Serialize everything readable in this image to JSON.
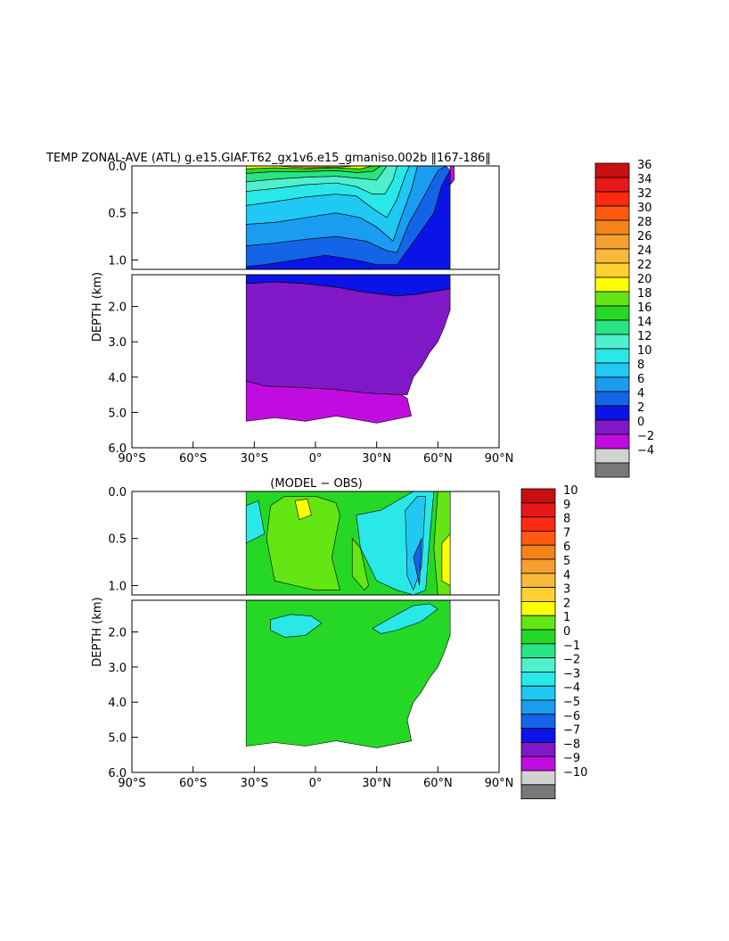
{
  "figure": {
    "title": "TEMP ZONAL-AVE (ATL) g.e15.GIAF.T62_gx1v6.e15_gmaniso.002b ‖167-186‖"
  },
  "chart_data": [
    {
      "type": "heatmap",
      "title": "TEMP ZONAL-AVE (ATL) g.e15.GIAF.T62_gx1v6.e15_gmaniso.002b ‖167-186‖",
      "ylabel": "DEPTH (km)",
      "xlabel": "",
      "x_ticks": [
        "90°S",
        "60°S",
        "30°S",
        "0°",
        "30°N",
        "60°N",
        "90°N"
      ],
      "y_ticks_upper": [
        "0.0",
        "0.5",
        "1.0"
      ],
      "y_ticks_lower": [
        "2.0",
        "3.0",
        "4.0",
        "5.0",
        "6.0"
      ],
      "xlim": [
        -90,
        90
      ],
      "ylim_upper": [
        0,
        1.1
      ],
      "ylim_lower": [
        1.1,
        6.0
      ],
      "data_extent_lat": [
        -34,
        66
      ],
      "colorbar_levels": [
        "36",
        "34",
        "32",
        "30",
        "28",
        "26",
        "24",
        "22",
        "20",
        "18",
        "16",
        "14",
        "12",
        "10",
        "8",
        "6",
        "4",
        "2",
        "0",
        "−2",
        "−4"
      ],
      "colorbar_colors": [
        "#c81010",
        "#e81818",
        "#ff2a10",
        "#ff5a10",
        "#f58418",
        "#f5a030",
        "#f8b838",
        "#ffd030",
        "#ffff00",
        "#64e614",
        "#26d826",
        "#28e484",
        "#50f0cc",
        "#2ae8e8",
        "#20c8f4",
        "#1a9cf0",
        "#1464e8",
        "#0a14e8",
        "#8018c8",
        "#c00ce0",
        "#d2d2d2",
        "#787878"
      ]
    },
    {
      "type": "heatmap",
      "title": "(MODEL − OBS)",
      "ylabel": "DEPTH (km)",
      "xlabel": "",
      "x_ticks": [
        "90°S",
        "60°S",
        "30°S",
        "0°",
        "30°N",
        "60°N",
        "90°N"
      ],
      "y_ticks_upper": [
        "0.0",
        "0.5",
        "1.0"
      ],
      "y_ticks_lower": [
        "2.0",
        "3.0",
        "4.0",
        "5.0",
        "6.0"
      ],
      "xlim": [
        -90,
        90
      ],
      "ylim_upper": [
        0,
        1.1
      ],
      "ylim_lower": [
        1.1,
        6.0
      ],
      "data_extent_lat": [
        -34,
        66
      ],
      "colorbar_levels": [
        "10",
        "9",
        "8",
        "7",
        "6",
        "5",
        "4",
        "3",
        "2",
        "1",
        "0",
        "−1",
        "−2",
        "−3",
        "−4",
        "−5",
        "−6",
        "−7",
        "−8",
        "−9",
        "−10"
      ],
      "colorbar_colors": [
        "#c81010",
        "#e81818",
        "#ff2a10",
        "#ff5a10",
        "#f58418",
        "#f5a030",
        "#f8b838",
        "#ffd030",
        "#ffff00",
        "#64e614",
        "#26d826",
        "#28e484",
        "#50f0cc",
        "#2ae8e8",
        "#20c8f4",
        "#1a9cf0",
        "#1464e8",
        "#0a14e8",
        "#8018c8",
        "#c00ce0",
        "#d2d2d2",
        "#787878"
      ]
    }
  ]
}
